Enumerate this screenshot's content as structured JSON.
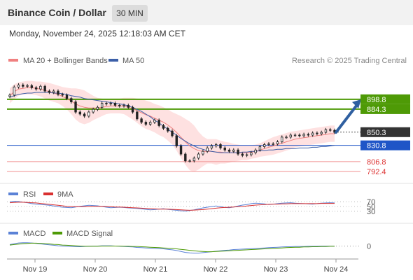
{
  "header": {
    "title": "Binance Coin / Dollar",
    "timeframe": "30 MIN",
    "timestamp": "Monday, November 24, 2025 12:18:03 AM CET"
  },
  "main_legend": {
    "ma20_label": "MA 20 + Bollinger Bands",
    "ma50_label": "MA 50",
    "credit": "Research © 2025 Trading Central"
  },
  "colors": {
    "ma20": "#f08080",
    "ma50": "#3c5fa8",
    "bands": "#fdd7d7",
    "resistance": "#4e9a06",
    "support": "#1f55c7",
    "red_level": "#f09090",
    "arrow": "#2f5fa0",
    "candle": "#222222",
    "rsi": "#5b82d6",
    "rsi_ma": "#d93030",
    "macd": "#5b82d6",
    "macd_signal": "#4e9a06"
  },
  "price_levels": [
    {
      "value": 898.8,
      "label": "898.8",
      "type": "resistance"
    },
    {
      "value": 884.3,
      "label": "884.3",
      "type": "resistance"
    },
    {
      "value": 850.3,
      "label": "850.3",
      "type": "last"
    },
    {
      "value": 830.8,
      "label": "830.8",
      "type": "support"
    },
    {
      "value": 806.8,
      "label": "806.8",
      "type": "red"
    },
    {
      "value": 792.4,
      "label": "792.4",
      "type": "red"
    }
  ],
  "rsi_panel": {
    "label": "RSI",
    "ma_label": "9MA",
    "levels": [
      "70",
      "50",
      "30"
    ]
  },
  "macd_panel": {
    "label": "MACD",
    "signal_label": "MACD Signal",
    "zero_label": "0"
  },
  "chart_data": {
    "type": "candlestick",
    "x_ticks": [
      "Nov 19",
      "Nov 20",
      "Nov 21",
      "Nov 22",
      "Nov 23",
      "Nov 24"
    ],
    "price_range": [
      785,
      940
    ],
    "close": [
      905,
      917,
      920,
      918,
      919,
      916,
      914,
      918,
      911,
      909,
      911,
      906,
      905,
      900,
      895,
      880,
      877,
      874,
      880,
      884,
      887,
      893,
      892,
      893,
      890,
      889,
      890,
      887,
      880,
      870,
      865,
      862,
      865,
      868,
      860,
      856,
      852,
      845,
      830,
      818,
      808,
      808,
      812,
      818,
      822,
      827,
      830,
      832,
      827,
      824,
      822,
      824,
      818,
      816,
      817,
      820,
      824,
      829,
      832,
      833,
      833,
      836,
      843,
      843,
      846,
      846,
      845,
      847,
      846,
      849,
      848,
      850,
      854,
      853,
      850
    ],
    "ma20": [
      904,
      910,
      914,
      915,
      916,
      916,
      915,
      914,
      912,
      910,
      908,
      906,
      903,
      900,
      896,
      892,
      889,
      887,
      886,
      886,
      886,
      887,
      888,
      889,
      889,
      889,
      889,
      887,
      885,
      882,
      879,
      876,
      874,
      871,
      868,
      865,
      861,
      856,
      850,
      843,
      836,
      830,
      826,
      823,
      822,
      822,
      822,
      821,
      821,
      820,
      820,
      820,
      820,
      820,
      820,
      821,
      822,
      824,
      826,
      828,
      830,
      832,
      834,
      836,
      838,
      840,
      841,
      842,
      843,
      844,
      845,
      846,
      847,
      848,
      848
    ],
    "ma50": [
      902,
      904,
      906,
      907,
      908,
      908,
      909,
      909,
      909,
      909,
      908,
      908,
      907,
      906,
      904,
      903,
      902,
      900,
      899,
      898,
      897,
      896,
      895,
      894,
      893,
      892,
      891,
      889,
      887,
      884,
      881,
      877,
      873,
      868,
      864,
      859,
      855,
      850,
      846,
      841,
      837,
      833,
      830,
      827,
      825,
      823,
      822,
      821,
      820,
      820,
      820,
      820,
      820,
      821,
      821,
      822,
      822,
      823,
      823,
      824,
      824,
      825,
      825,
      826,
      826,
      826,
      827,
      827,
      827,
      828,
      828,
      829,
      829,
      830,
      831
    ],
    "bb_upper": [
      915,
      921,
      924,
      925,
      926,
      926,
      925,
      925,
      924,
      923,
      921,
      919,
      917,
      916,
      915,
      915,
      914,
      912,
      908,
      904,
      901,
      900,
      899,
      900,
      900,
      900,
      901,
      901,
      901,
      900,
      899,
      897,
      895,
      892,
      890,
      887,
      884,
      880,
      877,
      874,
      870,
      866,
      860,
      851,
      844,
      840,
      840,
      840,
      838,
      836,
      835,
      833,
      832,
      831,
      831,
      831,
      832,
      834,
      837,
      840,
      843,
      845,
      847,
      849,
      851,
      852,
      853,
      854,
      855,
      856,
      857,
      858,
      859,
      860,
      860
    ],
    "bb_lower": [
      893,
      899,
      904,
      906,
      906,
      906,
      905,
      903,
      900,
      897,
      895,
      893,
      889,
      884,
      877,
      869,
      864,
      862,
      864,
      868,
      871,
      874,
      877,
      878,
      878,
      878,
      877,
      873,
      869,
      864,
      859,
      855,
      853,
      850,
      846,
      843,
      838,
      832,
      823,
      812,
      802,
      794,
      792,
      795,
      800,
      804,
      804,
      802,
      804,
      804,
      805,
      807,
      808,
      809,
      809,
      811,
      812,
      814,
      815,
      816,
      817,
      819,
      821,
      823,
      825,
      828,
      829,
      830,
      831,
      832,
      833,
      834,
      835,
      836,
      836
    ],
    "projection": {
      "from": 850,
      "to": 898.8
    },
    "rsi_range": [
      0,
      100
    ],
    "rsi": [
      70,
      72,
      71,
      68,
      66,
      62,
      60,
      58,
      57,
      55,
      52,
      49,
      47,
      46,
      45,
      48,
      51,
      53,
      55,
      54,
      53,
      50,
      47,
      45,
      46,
      47,
      46,
      44,
      43,
      42,
      40,
      38,
      36,
      37,
      39,
      41,
      38,
      36,
      34,
      32,
      31,
      33,
      36,
      40,
      44,
      47,
      50,
      52,
      49,
      46,
      45,
      48,
      52,
      56,
      58,
      62,
      64,
      63,
      61,
      58,
      60,
      62,
      64,
      65,
      66,
      64,
      63,
      62,
      61,
      60,
      62,
      64,
      65,
      66,
      65
    ],
    "rsi_ma": [
      66,
      67,
      68,
      68,
      67,
      66,
      65,
      63,
      61,
      59,
      57,
      55,
      53,
      51,
      50,
      49,
      49,
      49,
      50,
      51,
      51,
      51,
      50,
      49,
      48,
      48,
      47,
      46,
      45,
      44,
      43,
      42,
      41,
      40,
      39,
      39,
      39,
      38,
      37,
      36,
      35,
      34,
      35,
      36,
      37,
      39,
      41,
      43,
      45,
      46,
      47,
      48,
      49,
      50,
      52,
      54,
      56,
      57,
      58,
      59,
      60,
      60,
      61,
      61,
      62,
      62,
      62,
      62,
      62,
      62,
      62,
      63,
      63,
      63,
      63
    ],
    "macd": [
      6,
      10,
      13,
      14,
      14,
      13,
      11,
      9,
      7,
      5,
      3,
      1,
      0,
      -1,
      -2,
      -3,
      -3,
      -2,
      -1,
      0,
      0,
      1,
      1,
      1,
      0,
      -1,
      -2,
      -3,
      -4,
      -6,
      -7,
      -8,
      -9,
      -10,
      -11,
      -12,
      -14,
      -16,
      -19,
      -23,
      -27,
      -29,
      -30,
      -30,
      -28,
      -26,
      -24,
      -22,
      -20,
      -18,
      -17,
      -15,
      -14,
      -13,
      -12,
      -11,
      -10,
      -9,
      -8,
      -7,
      -6,
      -5,
      -4,
      -3,
      -3,
      -2,
      -2,
      -2,
      -1,
      -1,
      -1,
      0,
      0,
      0,
      0
    ],
    "macd_signal": [
      4,
      6,
      8,
      10,
      11,
      12,
      12,
      11,
      10,
      9,
      7,
      6,
      4,
      3,
      2,
      1,
      0,
      -1,
      -1,
      -1,
      -1,
      0,
      0,
      0,
      0,
      0,
      -1,
      -1,
      -2,
      -2,
      -3,
      -4,
      -5,
      -6,
      -7,
      -8,
      -9,
      -10,
      -12,
      -14,
      -16,
      -18,
      -20,
      -22,
      -23,
      -24,
      -24,
      -23,
      -22,
      -21,
      -20,
      -19,
      -18,
      -17,
      -16,
      -15,
      -14,
      -13,
      -12,
      -11,
      -10,
      -9,
      -8,
      -7,
      -6,
      -5,
      -5,
      -4,
      -4,
      -3,
      -3,
      -2,
      -2,
      -1,
      -1
    ],
    "macd_range": [
      -40,
      25
    ]
  }
}
